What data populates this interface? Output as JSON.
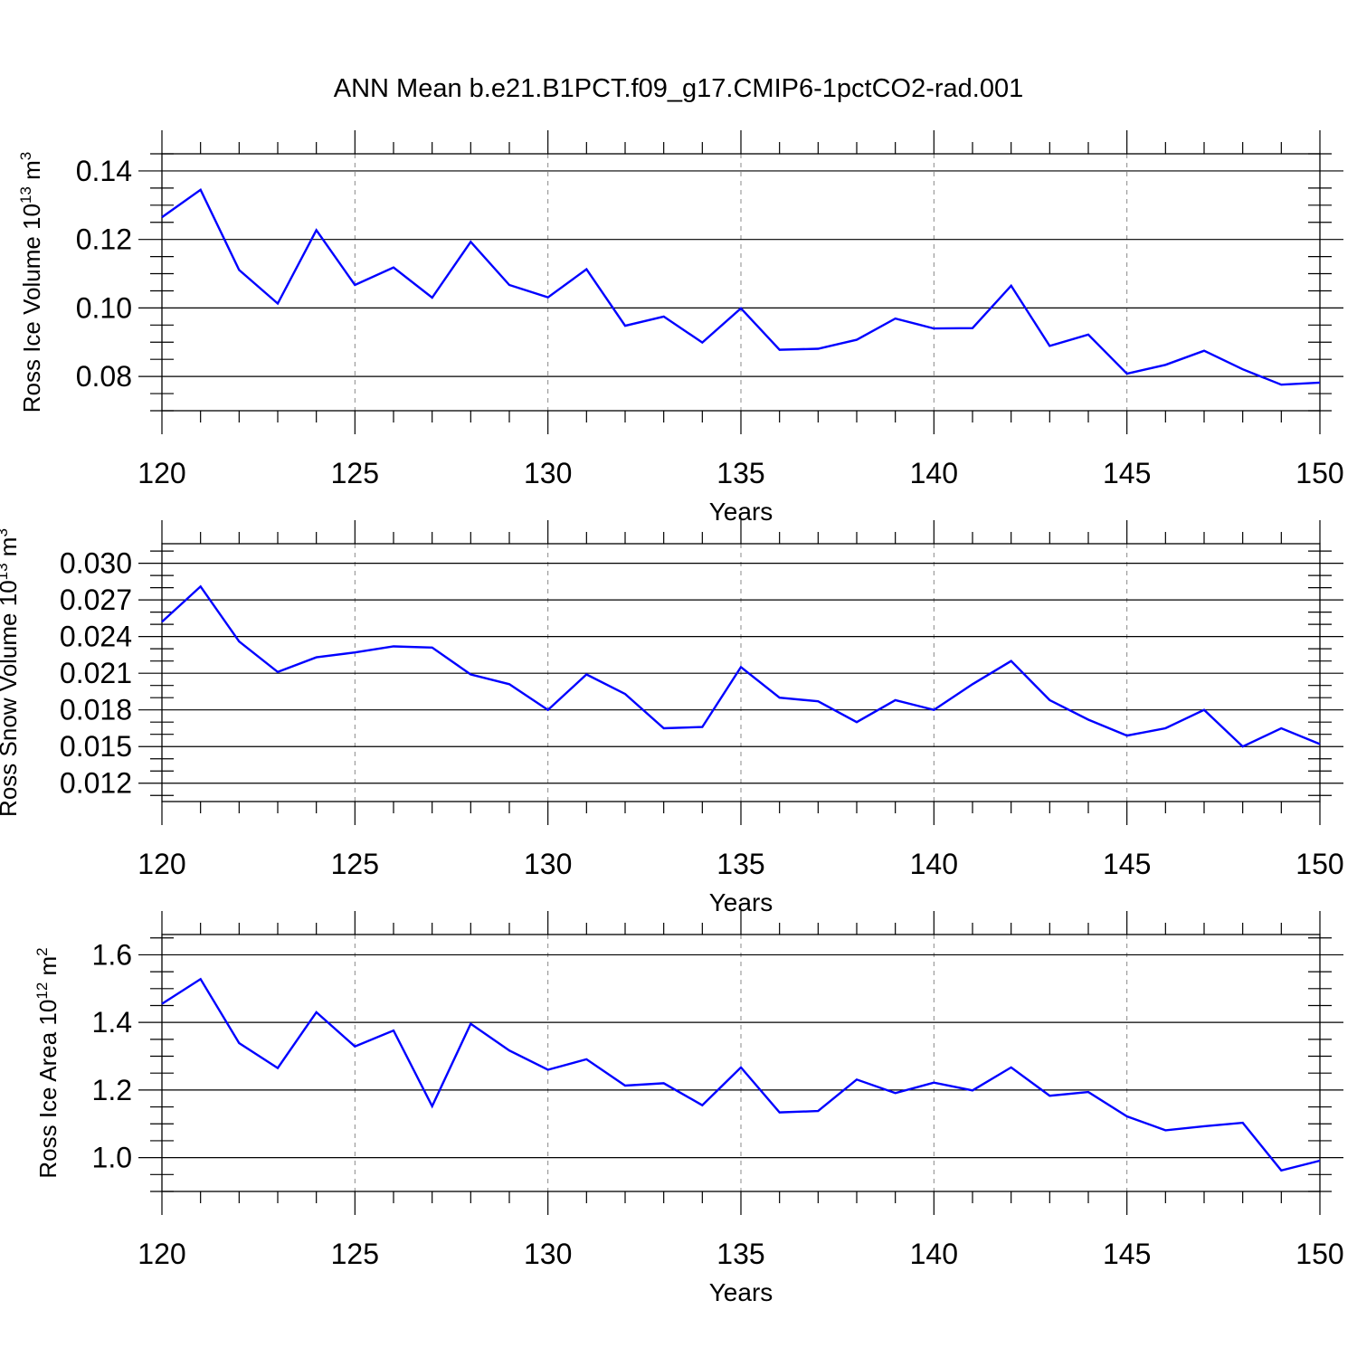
{
  "title": "ANN Mean b.e21.B1PCT.f09_g17.CMIP6-1pctCO2-rad.001",
  "chart_data": [
    {
      "type": "line",
      "xlabel": "Years",
      "ylabel": {
        "main": "Ross Ice Volume 10",
        "sup1": "13",
        "mid": " m",
        "sup2": "3"
      },
      "xlim": [
        120,
        150
      ],
      "ylim": [
        0.07,
        0.145
      ],
      "xticks": [
        120,
        125,
        130,
        135,
        140,
        145,
        150
      ],
      "xtick_labels": [
        "120",
        "125",
        "130",
        "135",
        "140",
        "145",
        "150"
      ],
      "yticks": [
        0.08,
        0.1,
        0.12,
        0.14
      ],
      "ytick_labels": [
        "0.08",
        "0.10",
        "0.12",
        "0.14"
      ],
      "y_minor_step": 0.005,
      "grid": "dashed vertical at major x ticks",
      "line_color": "#0000ff",
      "x": [
        120,
        121,
        122,
        123,
        124,
        125,
        126,
        127,
        128,
        129,
        130,
        131,
        132,
        133,
        134,
        135,
        136,
        137,
        138,
        139,
        140,
        141,
        142,
        143,
        144,
        145,
        146,
        147,
        148,
        149,
        150
      ],
      "values": [
        0.1265,
        0.1345,
        0.1111,
        0.1013,
        0.1227,
        0.1067,
        0.1118,
        0.103,
        0.1193,
        0.1067,
        0.1031,
        0.1113,
        0.0948,
        0.0975,
        0.0899,
        0.0999,
        0.0878,
        0.0881,
        0.0907,
        0.0969,
        0.094,
        0.0941,
        0.1065,
        0.0889,
        0.0922,
        0.0808,
        0.0834,
        0.0875,
        0.0821,
        0.0776,
        0.0782
      ]
    },
    {
      "type": "line",
      "xlabel": "Years",
      "ylabel": {
        "main": "Ross Snow Volume 10",
        "sup1": "13",
        "mid": " m",
        "sup2": "3"
      },
      "xlim": [
        120,
        150
      ],
      "ylim": [
        0.0105,
        0.0316
      ],
      "xticks": [
        120,
        125,
        130,
        135,
        140,
        145,
        150
      ],
      "xtick_labels": [
        "120",
        "125",
        "130",
        "135",
        "140",
        "145",
        "150"
      ],
      "yticks": [
        0.012,
        0.015,
        0.018,
        0.021,
        0.024,
        0.027,
        0.03
      ],
      "ytick_labels": [
        "0.012",
        "0.015",
        "0.018",
        "0.021",
        "0.024",
        "0.027",
        "0.030"
      ],
      "y_minor_step": 0.001,
      "grid": "dashed vertical at major x ticks",
      "line_color": "#0000ff",
      "x": [
        120,
        121,
        122,
        123,
        124,
        125,
        126,
        127,
        128,
        129,
        130,
        131,
        132,
        133,
        134,
        135,
        136,
        137,
        138,
        139,
        140,
        141,
        142,
        143,
        144,
        145,
        146,
        147,
        148,
        149,
        150
      ],
      "values": [
        0.0252,
        0.0281,
        0.0236,
        0.0211,
        0.0223,
        0.0227,
        0.0232,
        0.0231,
        0.0209,
        0.0201,
        0.018,
        0.0209,
        0.0193,
        0.0165,
        0.0166,
        0.0215,
        0.019,
        0.0187,
        0.017,
        0.0188,
        0.018,
        0.0201,
        0.022,
        0.0188,
        0.0172,
        0.0159,
        0.0165,
        0.018,
        0.015,
        0.0165,
        0.0152
      ]
    },
    {
      "type": "line",
      "xlabel": "Years",
      "ylabel": {
        "main": "Ross Ice Area 10",
        "sup1": "12",
        "mid": " m",
        "sup2": "2"
      },
      "xlim": [
        120,
        150
      ],
      "ylim": [
        0.9,
        1.66
      ],
      "xticks": [
        120,
        125,
        130,
        135,
        140,
        145,
        150
      ],
      "xtick_labels": [
        "120",
        "125",
        "130",
        "135",
        "140",
        "145",
        "150"
      ],
      "yticks": [
        1.0,
        1.2,
        1.4,
        1.6
      ],
      "ytick_labels": [
        "1.0",
        "1.2",
        "1.4",
        "1.6"
      ],
      "y_minor_step": 0.05,
      "grid": "dashed vertical at major x ticks",
      "line_color": "#0000ff",
      "x": [
        120,
        121,
        122,
        123,
        124,
        125,
        126,
        127,
        128,
        129,
        130,
        131,
        132,
        133,
        134,
        135,
        136,
        137,
        138,
        139,
        140,
        141,
        142,
        143,
        144,
        145,
        146,
        147,
        148,
        149,
        150
      ],
      "values": [
        1.455,
        1.528,
        1.339,
        1.265,
        1.43,
        1.329,
        1.376,
        1.152,
        1.396,
        1.317,
        1.26,
        1.291,
        1.213,
        1.22,
        1.155,
        1.267,
        1.134,
        1.138,
        1.231,
        1.191,
        1.222,
        1.199,
        1.267,
        1.183,
        1.194,
        1.122,
        1.081,
        1.093,
        1.103,
        0.962,
        0.991
      ]
    }
  ]
}
